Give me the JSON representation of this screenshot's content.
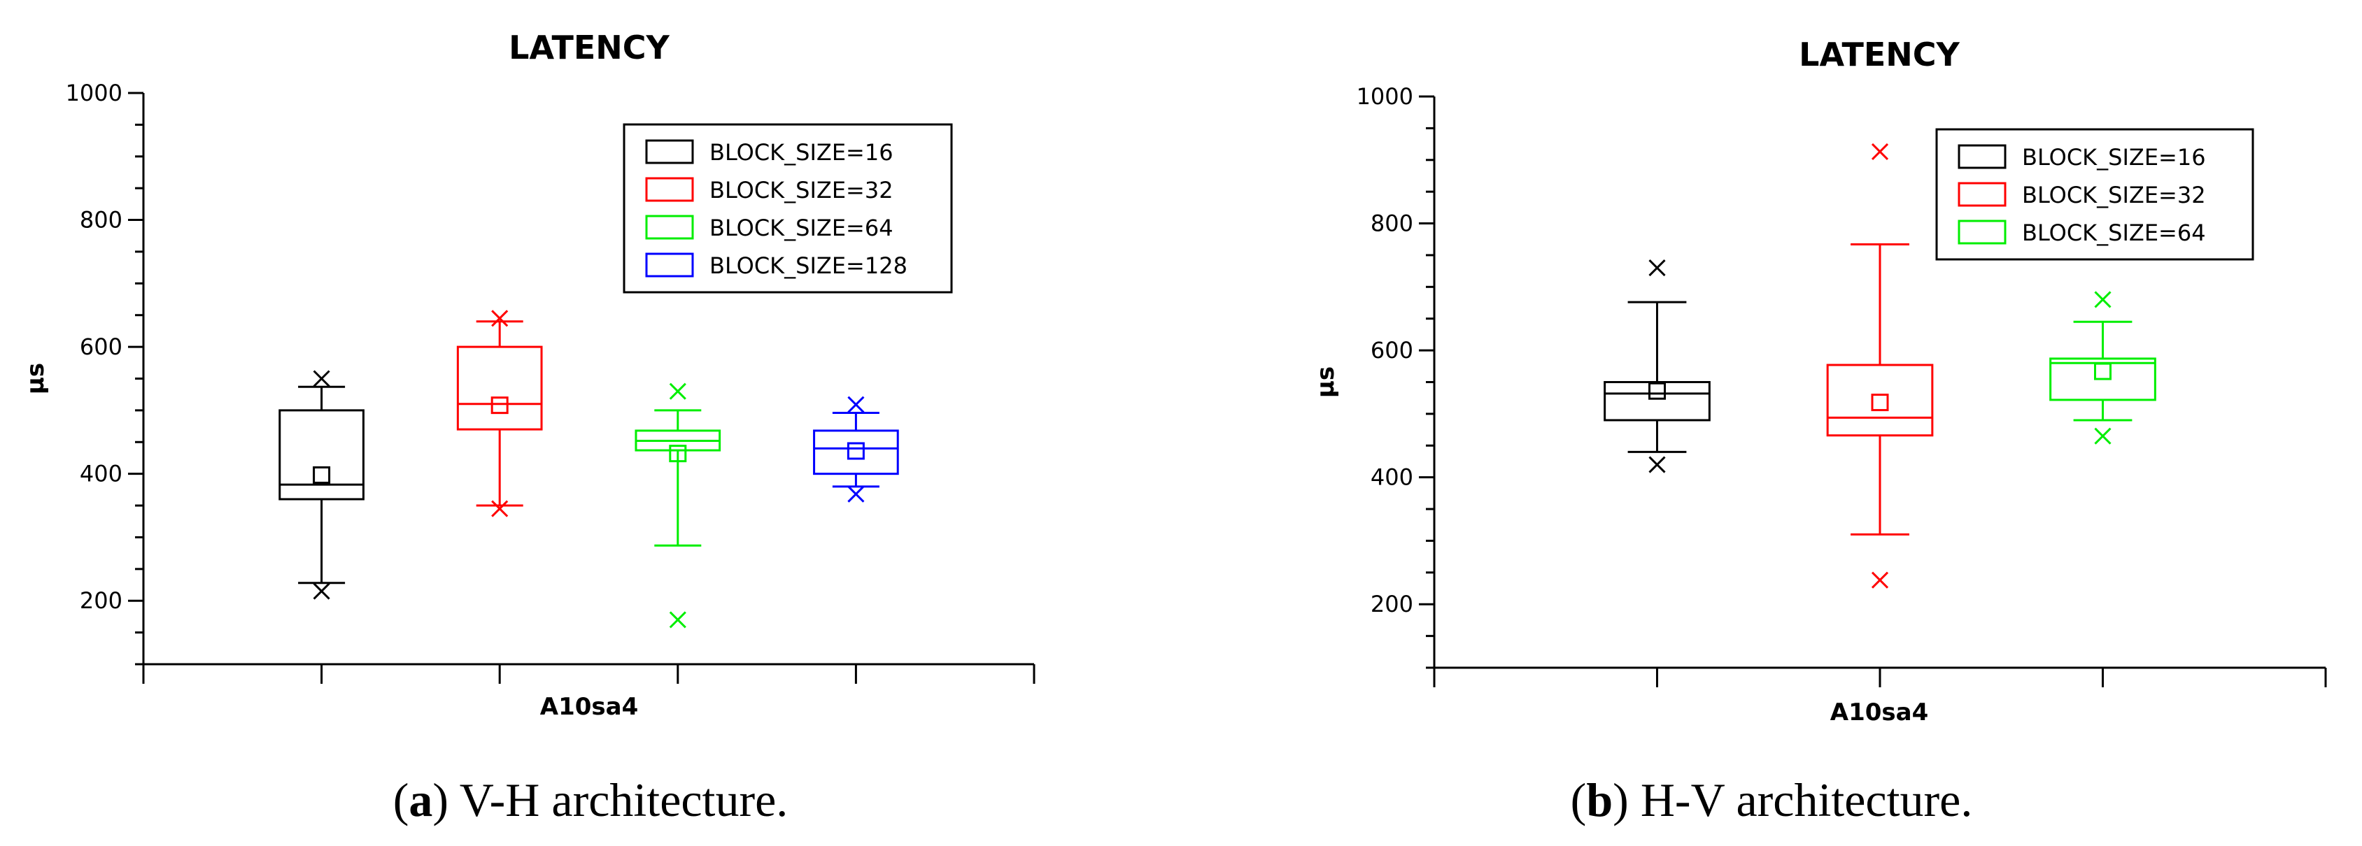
{
  "chart_data": [
    {
      "type": "box",
      "title": "LATENCY",
      "xlabel": "A10sa4",
      "ylabel": "µs",
      "ylim": [
        100,
        1000
      ],
      "yticks": [
        200,
        400,
        600,
        800,
        1000
      ],
      "legend_position": "top-right",
      "caption_letter": "a",
      "caption_text": " V-H architecture.",
      "series": [
        {
          "name": "BLOCK_SIZE=16",
          "color": "#000000",
          "q1": 360,
          "median": 383,
          "q3": 500,
          "mean": 398,
          "whisker_low": 228,
          "whisker_high": 537,
          "outliers": [
            215,
            550
          ]
        },
        {
          "name": "BLOCK_SIZE=32",
          "color": "#ff0000",
          "q1": 470,
          "median": 510,
          "q3": 600,
          "mean": 508,
          "whisker_low": 350,
          "whisker_high": 640,
          "outliers": [
            345,
            645
          ]
        },
        {
          "name": "BLOCK_SIZE=64",
          "color": "#00ee00",
          "q1": 437,
          "median": 452,
          "q3": 468,
          "mean": 432,
          "whisker_low": 287,
          "whisker_high": 500,
          "outliers": [
            170,
            530
          ]
        },
        {
          "name": "BLOCK_SIZE=128",
          "color": "#0000ff",
          "q1": 400,
          "median": 440,
          "q3": 468,
          "mean": 436,
          "whisker_low": 380,
          "whisker_high": 496,
          "outliers": [
            368,
            509
          ]
        }
      ]
    },
    {
      "type": "box",
      "title": "LATENCY",
      "xlabel": "A10sa4",
      "ylabel": "µs",
      "ylim": [
        100,
        1000
      ],
      "yticks": [
        200,
        400,
        600,
        800,
        1000
      ],
      "legend_position": "top-right",
      "caption_letter": "b",
      "caption_text": " H-V architecture.",
      "series": [
        {
          "name": "BLOCK_SIZE=16",
          "color": "#000000",
          "q1": 490,
          "median": 532,
          "q3": 550,
          "mean": 536,
          "whisker_low": 440,
          "whisker_high": 676,
          "outliers": [
            420,
            730
          ]
        },
        {
          "name": "BLOCK_SIZE=32",
          "color": "#ff0000",
          "q1": 466,
          "median": 494,
          "q3": 577,
          "mean": 518,
          "whisker_low": 310,
          "whisker_high": 767,
          "outliers": [
            238,
            913
          ]
        },
        {
          "name": "BLOCK_SIZE=64",
          "color": "#00ee00",
          "q1": 522,
          "median": 580,
          "q3": 587,
          "mean": 567,
          "whisker_low": 490,
          "whisker_high": 645,
          "outliers": [
            465,
            680
          ]
        }
      ]
    }
  ]
}
